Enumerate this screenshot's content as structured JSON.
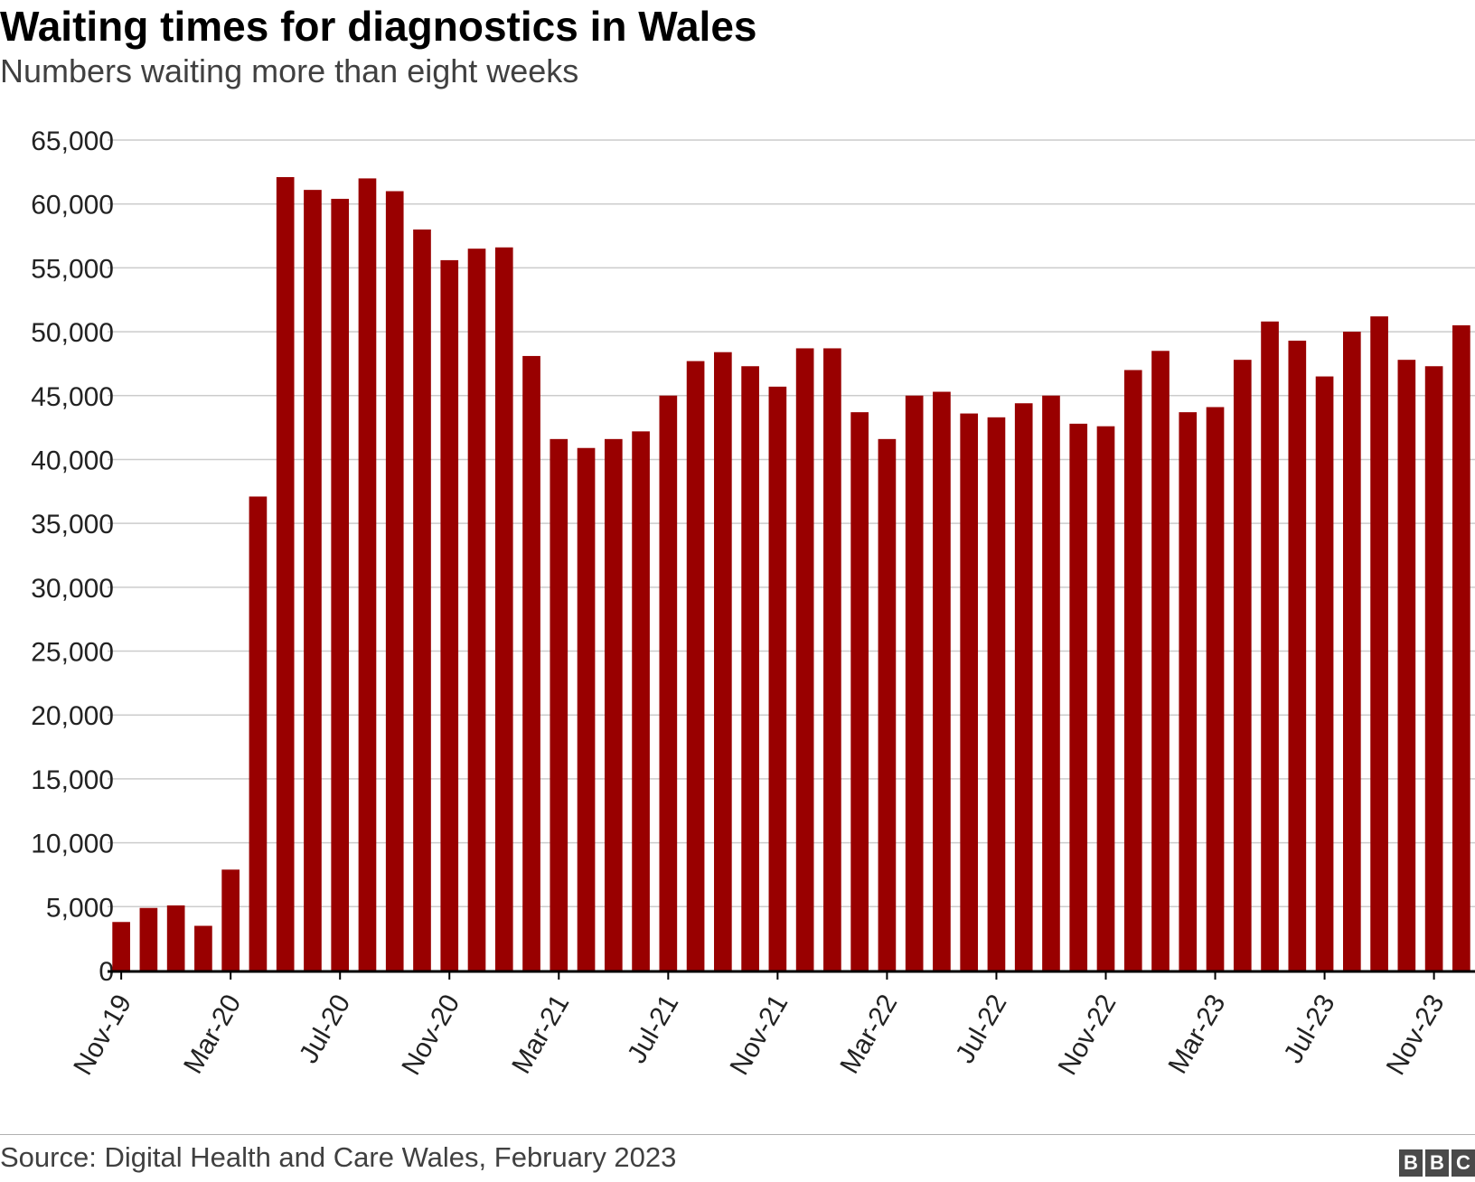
{
  "chart_data": {
    "type": "bar",
    "title": "Waiting times for diagnostics in Wales",
    "subtitle": "Numbers waiting more than eight weeks",
    "xlabel": "",
    "ylabel": "",
    "ylim": [
      0,
      65000
    ],
    "yticks": [
      0,
      5000,
      10000,
      15000,
      20000,
      25000,
      30000,
      35000,
      40000,
      45000,
      50000,
      55000,
      60000,
      65000
    ],
    "ytick_labels": [
      "0",
      "5,000",
      "10,000",
      "15,000",
      "20,000",
      "25,000",
      "30,000",
      "35,000",
      "40,000",
      "45,000",
      "50,000",
      "55,000",
      "60,000",
      "65,000"
    ],
    "x_tick_labels": [
      "Nov-19",
      "Mar-20",
      "Jul-20",
      "Nov-20",
      "Mar-21",
      "Jul-21",
      "Nov-21",
      "Mar-22",
      "Jul-22",
      "Nov-22",
      "Mar-23",
      "Jul-23",
      "Nov-23"
    ],
    "grid": true,
    "bar_color": "#990000",
    "categories": [
      "Nov-19",
      "Dec-19",
      "Jan-20",
      "Feb-20",
      "Mar-20",
      "Apr-20",
      "May-20",
      "Jun-20",
      "Jul-20",
      "Aug-20",
      "Sep-20",
      "Oct-20",
      "Nov-20",
      "Dec-20",
      "Jan-21",
      "Feb-21",
      "Mar-21",
      "Apr-21",
      "May-21",
      "Jun-21",
      "Jul-21",
      "Aug-21",
      "Sep-21",
      "Oct-21",
      "Nov-21",
      "Dec-21",
      "Jan-22",
      "Feb-22",
      "Mar-22",
      "Apr-22",
      "May-22",
      "Jun-22",
      "Jul-22",
      "Aug-22",
      "Sep-22",
      "Oct-22",
      "Nov-22",
      "Dec-22",
      "Jan-23",
      "Feb-23",
      "Mar-23",
      "Apr-23",
      "May-23",
      "Jun-23",
      "Jul-23",
      "Aug-23",
      "Sep-23",
      "Oct-23",
      "Nov-23",
      "Dec-23"
    ],
    "values": [
      3800,
      4900,
      5100,
      3500,
      7900,
      37100,
      62100,
      61100,
      60400,
      62000,
      61000,
      58000,
      55600,
      56500,
      56600,
      48100,
      41600,
      40900,
      41600,
      42200,
      45000,
      47700,
      48400,
      47300,
      45700,
      48700,
      48700,
      43700,
      41600,
      45000,
      45300,
      43600,
      43300,
      44400,
      45000,
      42800,
      42600,
      47000,
      48500,
      43700,
      44100,
      47800,
      50800,
      49300,
      46500,
      50000,
      51200,
      47800,
      47300,
      50500
    ]
  },
  "source": "Source: Digital Health and Care Wales, February 2023",
  "logo": {
    "letters": [
      "B",
      "B",
      "C"
    ],
    "color": "#4a4a4a"
  }
}
